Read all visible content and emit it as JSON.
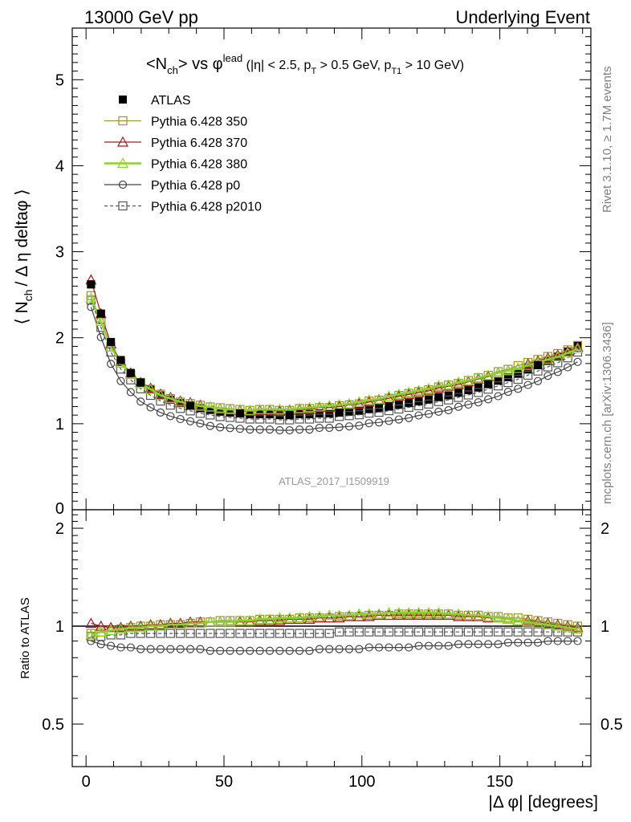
{
  "header": {
    "left": "13000 GeV pp",
    "right": "Underlying Event"
  },
  "side_labels": {
    "rivet": "Rivet 3.1.10, ≥ 1.7M events",
    "mcplots": "mcplots.cern.ch [arXiv:1306.3436]"
  },
  "watermark": "ATLAS_2017_I1509919",
  "colors": {
    "data": "#000000",
    "p350": "#99962a",
    "p370": "#a01b23",
    "p380": "#8bd130",
    "p0": "#444444",
    "p2010": "#555555"
  },
  "chart_data": {
    "type": "line",
    "title_parts": {
      "main": "<N",
      "main_sub": "ch",
      "vs": "> vs φ",
      "sup": "lead",
      "cuts": " (|η| < 2.5, p",
      "cuts_sub1": "T",
      "cuts_mid": " > 0.5 GeV, p",
      "cuts_sub2": "T1",
      "cuts_end": " > 10 GeV)"
    },
    "ylabel": "⟨ N",
    "ylabel_sub": "ch",
    "ylabel_rest": "/ Δ η deltaφ ⟩",
    "ratio_ylabel": "Ratio to ATLAS",
    "xlabel": "|Δ φ| [degrees]",
    "xlim": [
      -5,
      183
    ],
    "ylim_main": [
      0,
      5.6
    ],
    "ylim_ratio": [
      0.37,
      2.28
    ],
    "x_ticks": [
      "0",
      "50",
      "100",
      "150"
    ],
    "y_ticks_main": [
      "1",
      "2",
      "3",
      "4",
      "5"
    ],
    "y_tick_zero": "0",
    "y_ticks_ratio": [
      "0.5",
      "1",
      "2"
    ],
    "x": [
      1.8,
      5.4,
      9.0,
      12.6,
      16.2,
      19.8,
      23.4,
      27.0,
      30.6,
      34.2,
      37.8,
      41.4,
      45.0,
      48.6,
      52.2,
      55.8,
      59.4,
      63.0,
      66.6,
      70.2,
      73.8,
      77.4,
      81.0,
      84.6,
      88.2,
      91.8,
      95.4,
      99.0,
      102.6,
      106.2,
      109.8,
      113.4,
      117.0,
      120.6,
      124.2,
      127.8,
      131.4,
      135.0,
      138.6,
      142.2,
      145.8,
      149.4,
      153.0,
      156.6,
      160.2,
      163.8,
      167.4,
      171.0,
      174.6,
      178.2
    ],
    "data_series": {
      "name": "ATLAS",
      "values": [
        2.62,
        2.28,
        1.95,
        1.74,
        1.59,
        1.48,
        1.4,
        1.33,
        1.28,
        1.24,
        1.21,
        1.18,
        1.16,
        1.14,
        1.13,
        1.12,
        1.11,
        1.11,
        1.11,
        1.1,
        1.1,
        1.11,
        1.11,
        1.12,
        1.12,
        1.13,
        1.14,
        1.15,
        1.17,
        1.18,
        1.2,
        1.22,
        1.24,
        1.26,
        1.28,
        1.31,
        1.33,
        1.36,
        1.39,
        1.42,
        1.46,
        1.5,
        1.54,
        1.58,
        1.63,
        1.68,
        1.73,
        1.78,
        1.84,
        1.91
      ]
    },
    "series": [
      {
        "name": "Pythia 6.428 350",
        "key": "p350",
        "marker": "square-open",
        "dashed": false,
        "ratio": [
          0.95,
          0.96,
          0.97,
          0.98,
          0.99,
          1.0,
          1.0,
          1.01,
          1.01,
          1.01,
          1.02,
          1.03,
          1.03,
          1.04,
          1.04,
          1.04,
          1.04,
          1.05,
          1.05,
          1.05,
          1.05,
          1.06,
          1.06,
          1.06,
          1.06,
          1.07,
          1.07,
          1.07,
          1.08,
          1.08,
          1.08,
          1.09,
          1.09,
          1.09,
          1.09,
          1.09,
          1.09,
          1.08,
          1.08,
          1.08,
          1.07,
          1.07,
          1.06,
          1.06,
          1.05,
          1.04,
          1.03,
          1.02,
          1.01,
          1.0
        ]
      },
      {
        "name": "Pythia 6.428 370",
        "key": "p370",
        "marker": "triangle-open",
        "dashed": false,
        "ratio": [
          1.02,
          1.0,
          0.99,
          0.99,
          1.0,
          1.0,
          1.01,
          1.01,
          1.02,
          1.02,
          1.03,
          1.03,
          1.03,
          1.03,
          1.03,
          1.03,
          1.03,
          1.04,
          1.04,
          1.04,
          1.05,
          1.05,
          1.05,
          1.06,
          1.06,
          1.06,
          1.07,
          1.07,
          1.07,
          1.08,
          1.08,
          1.08,
          1.08,
          1.08,
          1.08,
          1.08,
          1.08,
          1.07,
          1.07,
          1.07,
          1.06,
          1.06,
          1.05,
          1.04,
          1.04,
          1.03,
          1.02,
          1.01,
          1.0,
          0.99
        ]
      },
      {
        "name": "Pythia 6.428 380",
        "key": "p380",
        "marker": "triangle-open",
        "dashed": false,
        "ratio": [
          0.94,
          0.96,
          0.97,
          0.98,
          0.99,
          0.99,
          1.0,
          1.0,
          1.01,
          1.01,
          1.02,
          1.02,
          1.03,
          1.03,
          1.03,
          1.04,
          1.04,
          1.05,
          1.05,
          1.06,
          1.06,
          1.06,
          1.07,
          1.07,
          1.08,
          1.08,
          1.08,
          1.09,
          1.09,
          1.09,
          1.1,
          1.1,
          1.1,
          1.1,
          1.1,
          1.1,
          1.09,
          1.09,
          1.08,
          1.08,
          1.07,
          1.06,
          1.05,
          1.04,
          1.03,
          1.02,
          1.01,
          1.0,
          0.99,
          0.98
        ]
      },
      {
        "name": "Pythia 6.428 p0",
        "key": "p0",
        "marker": "circle-open",
        "dashed": false,
        "ratio": [
          0.9,
          0.88,
          0.87,
          0.86,
          0.86,
          0.85,
          0.85,
          0.85,
          0.85,
          0.85,
          0.85,
          0.85,
          0.84,
          0.84,
          0.84,
          0.84,
          0.84,
          0.84,
          0.84,
          0.84,
          0.84,
          0.84,
          0.84,
          0.85,
          0.85,
          0.85,
          0.85,
          0.85,
          0.86,
          0.86,
          0.86,
          0.86,
          0.86,
          0.87,
          0.87,
          0.87,
          0.87,
          0.88,
          0.88,
          0.88,
          0.88,
          0.88,
          0.89,
          0.89,
          0.89,
          0.89,
          0.9,
          0.9,
          0.9,
          0.9
        ]
      },
      {
        "name": "Pythia 6.428 p2010",
        "key": "p2010",
        "marker": "square-open",
        "dashed": true,
        "ratio": [
          0.93,
          0.93,
          0.94,
          0.94,
          0.95,
          0.95,
          0.95,
          0.95,
          0.95,
          0.95,
          0.95,
          0.95,
          0.95,
          0.95,
          0.95,
          0.95,
          0.95,
          0.95,
          0.95,
          0.95,
          0.95,
          0.95,
          0.95,
          0.95,
          0.95,
          0.96,
          0.96,
          0.96,
          0.96,
          0.96,
          0.96,
          0.96,
          0.96,
          0.96,
          0.96,
          0.96,
          0.96,
          0.96,
          0.96,
          0.96,
          0.96,
          0.96,
          0.96,
          0.96,
          0.96,
          0.96,
          0.96,
          0.96,
          0.96,
          0.96
        ]
      }
    ]
  }
}
